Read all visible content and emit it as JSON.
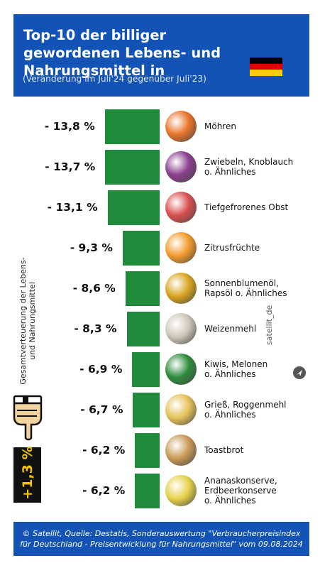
{
  "header": {
    "title": "Top-10 der billiger gewordenen Lebens- und Nahrungsmittel in",
    "subtitle": "(Veränderung im Juli'24 gegenüber Juli'23)",
    "flag_colors": [
      "#000000",
      "#dd0000",
      "#ffce00"
    ]
  },
  "side": {
    "label": "Gesamtverteuerung der Lebens- und Nahrungsmittel",
    "inflation_value": "+1,3 %",
    "hand_icon": "pointing-hand-icon"
  },
  "brand": {
    "name": "satellit_de",
    "icon": "send-arrow-icon"
  },
  "footer": {
    "source": "© Satellit, Quelle: Destatis, Sonderauswertung \"Verbraucherpreisindex für Deutschland - Preisentwicklung für Nahrungsmittel\" vom 09.08.2024"
  },
  "colors": {
    "bar": "#1f8b3b",
    "header_bg": "#1253b5",
    "inflation_text": "#f2c500"
  },
  "chart_data": {
    "type": "bar",
    "orientation": "horizontal",
    "categories": [
      "Möhren",
      "Zwiebeln, Knoblauch o. Ähnliches",
      "Tiefgefrorenes Obst",
      "Zitrusfrüchte",
      "Sonnenblumenöl, Rapsöl o. Ähnliches",
      "Weizenmehl",
      "Kiwis, Melonen o. Ähnliches",
      "Grieß, Roggenmehl o. Ähnliches",
      "Toastbrot",
      "Ananaskonserve, Erdbeerkonserve o. Ähnliches"
    ],
    "values": [
      -13.8,
      -13.7,
      -13.1,
      -9.3,
      -8.6,
      -8.3,
      -6.9,
      -6.7,
      -6.2,
      -6.2
    ],
    "value_labels": [
      "- 13,8 %",
      "- 13,7 %",
      "- 13,1 %",
      "- 9,3 %",
      "- 8,6 %",
      "- 8,3 %",
      "- 6,9 %",
      "- 6,7 %",
      "- 6,2 %",
      "- 6,2 %"
    ],
    "item_icons": [
      "carrot-icon",
      "onion-garlic-icon",
      "frozen-fruit-icon",
      "citrus-icon",
      "oil-icon",
      "flour-icon",
      "watermelon-icon",
      "semolina-icon",
      "toast-icon",
      "pineapple-can-icon"
    ],
    "item_colors": [
      "#e8742a",
      "#8a3f8f",
      "#d94f4f",
      "#f29b2b",
      "#d9a521",
      "#cfc7b8",
      "#2e8b3c",
      "#e6c259",
      "#c99a55",
      "#e6d24a"
    ],
    "title": "Top-10 der billiger gewordenen Lebens- und Nahrungsmittel in",
    "subtitle": "(Veränderung im Juli'24 gegenüber Juli'23)"
  }
}
